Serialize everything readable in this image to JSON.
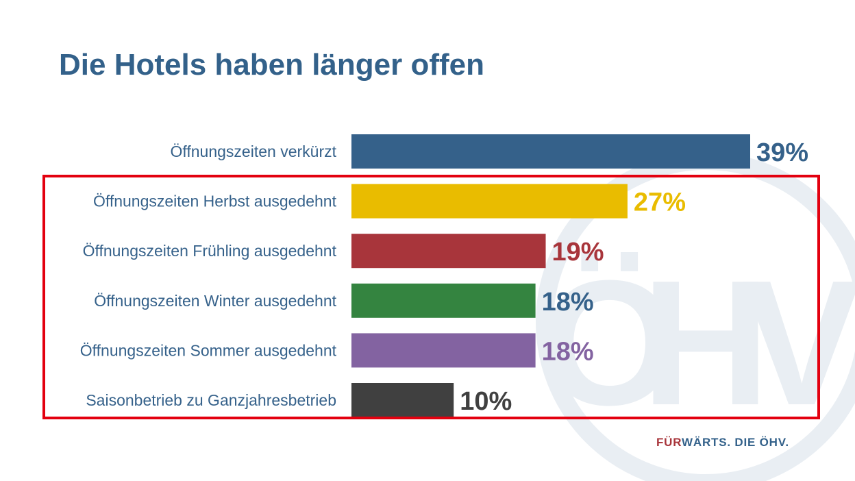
{
  "slide": {
    "title": "Die Hotels haben länger offen",
    "slogan_accent": "FÜR",
    "slogan_rest": "WÄRTS. DIE ÖHV."
  },
  "watermark": {
    "letters": [
      "Ö",
      "H",
      "V"
    ],
    "color": "#e9eef3"
  },
  "colors": {
    "title": "#33618a",
    "frame": "#e3000f",
    "slogan_accent": "#a8353b"
  },
  "chart_data": {
    "type": "bar",
    "orientation": "horizontal",
    "categories": [
      "Öffnungszeiten verkürzt",
      "Öffnungszeiten Herbst ausgedehnt",
      "Öffnungszeiten Frühling ausgedehnt",
      "Öffnungszeiten Winter ausgedehnt",
      "Öffnungszeiten Sommer ausgedehnt",
      "Saisonbetrieb zu Ganzjahresbetrieb"
    ],
    "values": [
      39,
      27,
      19,
      18,
      18,
      10
    ],
    "value_labels": [
      "39%",
      "27%",
      "19%",
      "18%",
      "18%",
      "10%"
    ],
    "unit": "%",
    "bar_colors": [
      "#35618a",
      "#e9bc00",
      "#a8353b",
      "#348440",
      "#8363a1",
      "#404040"
    ],
    "label_colors": [
      "#35618a",
      "#e9bc00",
      "#a8353b",
      "#35618a",
      "#8363a1",
      "#404040"
    ],
    "xlim": [
      0,
      39
    ],
    "grid": false,
    "legend": "none",
    "highlighted_categories": [
      1,
      2,
      3,
      4,
      5
    ]
  }
}
